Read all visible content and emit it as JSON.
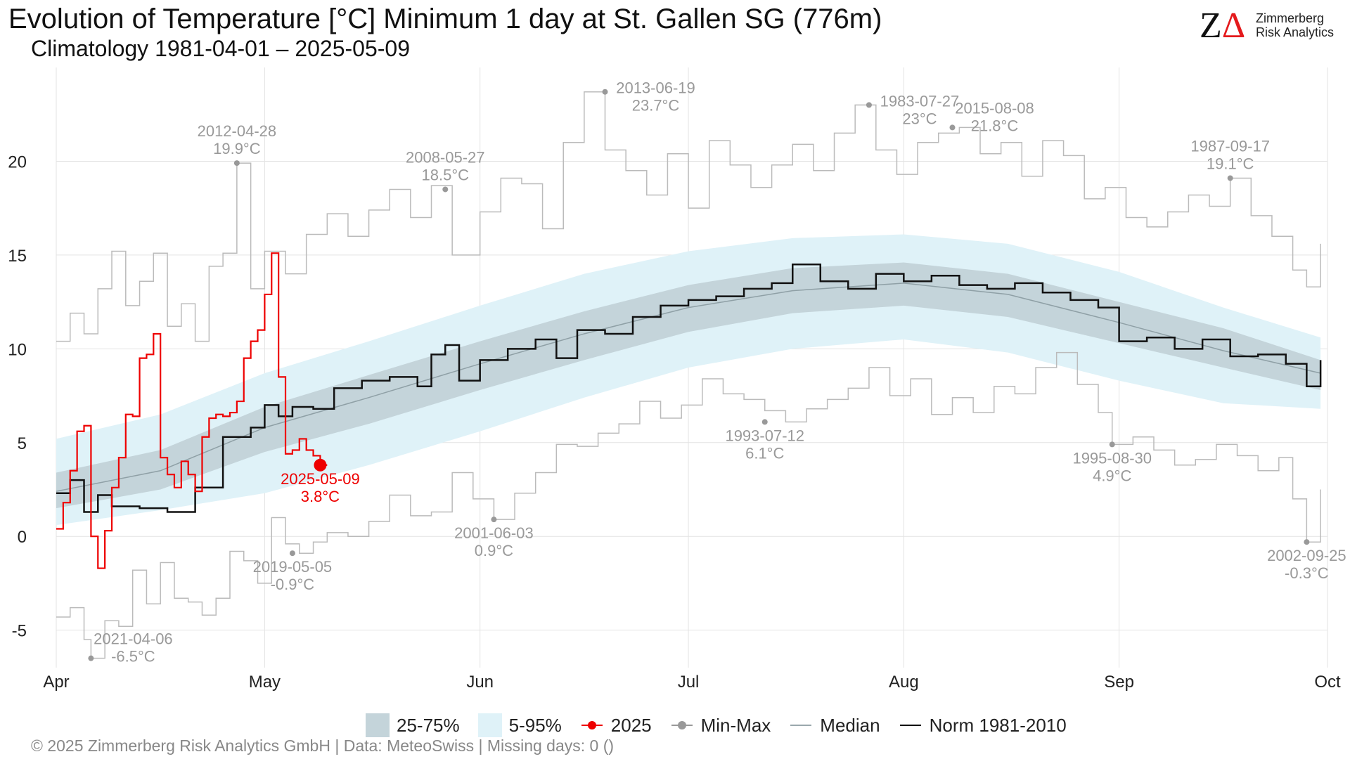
{
  "header": {
    "title": "Evolution of Temperature [°C] Minimum 1 day at St. Gallen  SG (776m)",
    "subtitle": "Climatology 1981-04-01 – 2025-05-09"
  },
  "logo": {
    "mark": "Z",
    "delta": "Δ",
    "line1": "Zimmerberg",
    "line2": "Risk Analytics"
  },
  "footer": "©  2025 Zimmerberg Risk Analytics GmbH | Data: MeteoSwiss | Missing days: 0 ()",
  "legend": [
    {
      "label": "25-75%",
      "key": "iqr"
    },
    {
      "label": "5-95%",
      "key": "p95"
    },
    {
      "label": "2025",
      "key": "dot",
      "color": "#ee0000"
    },
    {
      "label": "Min-Max",
      "key": "dot",
      "color": "#999999"
    },
    {
      "label": "Median",
      "key": "line",
      "color": "#9aa8ad"
    },
    {
      "label": "Norm 1981-2010",
      "key": "line",
      "color": "#111111"
    }
  ],
  "colors": {
    "band_iqr": "#c4d4da",
    "band_p95": "#dff2f8",
    "series_2025": "#ee0000",
    "minmax": "#bbbbbb",
    "norm": "#111111",
    "median": "#8fa0a6"
  },
  "chart_data": {
    "type": "line",
    "ylim": [
      -7,
      25
    ],
    "yticks": [
      -5,
      0,
      5,
      10,
      15,
      20
    ],
    "xlim": [
      0,
      183
    ],
    "xticks": [
      {
        "day": 0,
        "label": "Apr"
      },
      {
        "day": 30,
        "label": "May"
      },
      {
        "day": 61,
        "label": "Jun"
      },
      {
        "day": 91,
        "label": "Jul"
      },
      {
        "day": 122,
        "label": "Aug"
      },
      {
        "day": 153,
        "label": "Sep"
      },
      {
        "day": 183,
        "label": "Oct"
      }
    ],
    "grid": true,
    "legend_position": "bottom",
    "x_note": "day offset from 1 April",
    "percentiles": [
      {
        "day": 0,
        "p05": 0.6,
        "p25": 1.5,
        "p50": 2.4,
        "p75": 3.4,
        "p95": 5.2
      },
      {
        "day": 15,
        "p05": 1.4,
        "p25": 2.5,
        "p50": 3.5,
        "p75": 4.6,
        "p95": 6.5
      },
      {
        "day": 30,
        "p05": 2.3,
        "p25": 4.5,
        "p50": 5.8,
        "p75": 6.9,
        "p95": 8.7
      },
      {
        "day": 45,
        "p05": 3.8,
        "p25": 6.0,
        "p50": 7.4,
        "p75": 8.6,
        "p95": 10.4
      },
      {
        "day": 61,
        "p05": 5.6,
        "p25": 7.8,
        "p50": 9.2,
        "p75": 10.4,
        "p95": 12.3
      },
      {
        "day": 76,
        "p05": 7.4,
        "p25": 9.4,
        "p50": 10.8,
        "p75": 12.0,
        "p95": 14.0
      },
      {
        "day": 91,
        "p05": 9.0,
        "p25": 10.9,
        "p50": 12.2,
        "p75": 13.4,
        "p95": 15.2
      },
      {
        "day": 106,
        "p05": 10.0,
        "p25": 11.9,
        "p50": 13.1,
        "p75": 14.3,
        "p95": 15.9
      },
      {
        "day": 122,
        "p05": 10.5,
        "p25": 12.3,
        "p50": 13.5,
        "p75": 14.6,
        "p95": 16.1
      },
      {
        "day": 137,
        "p05": 9.8,
        "p25": 11.7,
        "p50": 12.9,
        "p75": 14.0,
        "p95": 15.6
      },
      {
        "day": 153,
        "p05": 8.3,
        "p25": 10.3,
        "p50": 11.4,
        "p75": 12.5,
        "p95": 14.1
      },
      {
        "day": 168,
        "p05": 7.1,
        "p25": 9.0,
        "p50": 9.9,
        "p75": 11.1,
        "p95": 12.2
      },
      {
        "day": 182,
        "p05": 6.8,
        "p25": 7.8,
        "p50": 8.7,
        "p75": 9.4,
        "p95": 10.6
      }
    ],
    "series_norm": [
      {
        "day": 0,
        "value": 2.3
      },
      {
        "day": 2,
        "value": 3.0
      },
      {
        "day": 4,
        "value": 1.3
      },
      {
        "day": 6,
        "value": 2.2
      },
      {
        "day": 8,
        "value": 1.6
      },
      {
        "day": 12,
        "value": 1.5
      },
      {
        "day": 16,
        "value": 1.3
      },
      {
        "day": 20,
        "value": 2.6
      },
      {
        "day": 24,
        "value": 5.3
      },
      {
        "day": 28,
        "value": 5.8
      },
      {
        "day": 30,
        "value": 7.0
      },
      {
        "day": 32,
        "value": 6.4
      },
      {
        "day": 34,
        "value": 6.9
      },
      {
        "day": 37,
        "value": 6.8
      },
      {
        "day": 40,
        "value": 7.9
      },
      {
        "day": 44,
        "value": 8.3
      },
      {
        "day": 48,
        "value": 8.5
      },
      {
        "day": 52,
        "value": 8.0
      },
      {
        "day": 54,
        "value": 9.7
      },
      {
        "day": 56,
        "value": 10.2
      },
      {
        "day": 58,
        "value": 8.3
      },
      {
        "day": 61,
        "value": 9.4
      },
      {
        "day": 65,
        "value": 10.0
      },
      {
        "day": 69,
        "value": 10.5
      },
      {
        "day": 72,
        "value": 9.5
      },
      {
        "day": 75,
        "value": 11.0
      },
      {
        "day": 79,
        "value": 10.8
      },
      {
        "day": 83,
        "value": 11.7
      },
      {
        "day": 87,
        "value": 12.3
      },
      {
        "day": 91,
        "value": 12.6
      },
      {
        "day": 95,
        "value": 12.8
      },
      {
        "day": 99,
        "value": 13.2
      },
      {
        "day": 103,
        "value": 13.5
      },
      {
        "day": 106,
        "value": 14.5
      },
      {
        "day": 110,
        "value": 13.6
      },
      {
        "day": 114,
        "value": 13.2
      },
      {
        "day": 118,
        "value": 14.0
      },
      {
        "day": 122,
        "value": 13.6
      },
      {
        "day": 126,
        "value": 13.9
      },
      {
        "day": 130,
        "value": 13.4
      },
      {
        "day": 134,
        "value": 13.2
      },
      {
        "day": 138,
        "value": 13.5
      },
      {
        "day": 142,
        "value": 13.0
      },
      {
        "day": 146,
        "value": 12.6
      },
      {
        "day": 150,
        "value": 12.2
      },
      {
        "day": 153,
        "value": 10.4
      },
      {
        "day": 157,
        "value": 10.6
      },
      {
        "day": 161,
        "value": 10.0
      },
      {
        "day": 165,
        "value": 10.5
      },
      {
        "day": 169,
        "value": 9.6
      },
      {
        "day": 173,
        "value": 9.7
      },
      {
        "day": 177,
        "value": 9.2
      },
      {
        "day": 180,
        "value": 8.0
      },
      {
        "day": 182,
        "value": 9.4
      }
    ],
    "series_2025": [
      {
        "day": 0,
        "value": 0.4
      },
      {
        "day": 1,
        "value": 1.8
      },
      {
        "day": 2,
        "value": 3.5
      },
      {
        "day": 3,
        "value": 5.6
      },
      {
        "day": 4,
        "value": 5.9
      },
      {
        "day": 5,
        "value": 0.0
      },
      {
        "day": 6,
        "value": -1.7
      },
      {
        "day": 7,
        "value": 0.3
      },
      {
        "day": 8,
        "value": 2.6
      },
      {
        "day": 9,
        "value": 4.2
      },
      {
        "day": 10,
        "value": 6.5
      },
      {
        "day": 11,
        "value": 6.4
      },
      {
        "day": 12,
        "value": 9.5
      },
      {
        "day": 13,
        "value": 9.7
      },
      {
        "day": 14,
        "value": 10.8
      },
      {
        "day": 15,
        "value": 4.2
      },
      {
        "day": 16,
        "value": 3.3
      },
      {
        "day": 17,
        "value": 2.6
      },
      {
        "day": 18,
        "value": 4.0
      },
      {
        "day": 19,
        "value": 3.3
      },
      {
        "day": 20,
        "value": 2.4
      },
      {
        "day": 21,
        "value": 5.3
      },
      {
        "day": 22,
        "value": 6.3
      },
      {
        "day": 23,
        "value": 6.5
      },
      {
        "day": 24,
        "value": 6.4
      },
      {
        "day": 25,
        "value": 6.6
      },
      {
        "day": 26,
        "value": 7.2
      },
      {
        "day": 27,
        "value": 9.5
      },
      {
        "day": 28,
        "value": 10.4
      },
      {
        "day": 29,
        "value": 11.0
      },
      {
        "day": 30,
        "value": 12.9
      },
      {
        "day": 31,
        "value": 15.1
      },
      {
        "day": 32,
        "value": 8.5
      },
      {
        "day": 33,
        "value": 4.4
      },
      {
        "day": 34,
        "value": 4.6
      },
      {
        "day": 35,
        "value": 5.2
      },
      {
        "day": 36,
        "value": 4.6
      },
      {
        "day": 37,
        "value": 4.3
      },
      {
        "day": 38,
        "value": 3.8
      }
    ],
    "series_max": [
      {
        "day": 0,
        "value": 10.4
      },
      {
        "day": 2,
        "value": 11.9
      },
      {
        "day": 4,
        "value": 10.8
      },
      {
        "day": 6,
        "value": 13.2
      },
      {
        "day": 8,
        "value": 15.2
      },
      {
        "day": 10,
        "value": 12.3
      },
      {
        "day": 12,
        "value": 13.6
      },
      {
        "day": 14,
        "value": 15.1
      },
      {
        "day": 16,
        "value": 11.2
      },
      {
        "day": 18,
        "value": 12.4
      },
      {
        "day": 20,
        "value": 10.4
      },
      {
        "day": 22,
        "value": 14.4
      },
      {
        "day": 24,
        "value": 15.1
      },
      {
        "day": 26,
        "value": 19.9
      },
      {
        "day": 28,
        "value": 13.2
      },
      {
        "day": 30,
        "value": 15.2
      },
      {
        "day": 33,
        "value": 14.0
      },
      {
        "day": 36,
        "value": 16.1
      },
      {
        "day": 39,
        "value": 17.2
      },
      {
        "day": 42,
        "value": 16.0
      },
      {
        "day": 45,
        "value": 17.4
      },
      {
        "day": 48,
        "value": 18.5
      },
      {
        "day": 51,
        "value": 17.0
      },
      {
        "day": 54,
        "value": 18.7
      },
      {
        "day": 57,
        "value": 15.0
      },
      {
        "day": 61,
        "value": 17.3
      },
      {
        "day": 64,
        "value": 19.1
      },
      {
        "day": 67,
        "value": 18.8
      },
      {
        "day": 70,
        "value": 16.4
      },
      {
        "day": 73,
        "value": 21.0
      },
      {
        "day": 76,
        "value": 23.7
      },
      {
        "day": 79,
        "value": 20.6
      },
      {
        "day": 82,
        "value": 19.5
      },
      {
        "day": 85,
        "value": 18.2
      },
      {
        "day": 88,
        "value": 20.4
      },
      {
        "day": 91,
        "value": 17.5
      },
      {
        "day": 94,
        "value": 21.1
      },
      {
        "day": 97,
        "value": 19.8
      },
      {
        "day": 100,
        "value": 18.6
      },
      {
        "day": 103,
        "value": 19.8
      },
      {
        "day": 106,
        "value": 20.9
      },
      {
        "day": 109,
        "value": 19.5
      },
      {
        "day": 112,
        "value": 21.5
      },
      {
        "day": 115,
        "value": 23.0
      },
      {
        "day": 118,
        "value": 20.6
      },
      {
        "day": 121,
        "value": 19.3
      },
      {
        "day": 124,
        "value": 21.0
      },
      {
        "day": 127,
        "value": 21.5
      },
      {
        "day": 130,
        "value": 21.8
      },
      {
        "day": 133,
        "value": 20.4
      },
      {
        "day": 136,
        "value": 21.0
      },
      {
        "day": 139,
        "value": 19.2
      },
      {
        "day": 142,
        "value": 21.1
      },
      {
        "day": 145,
        "value": 20.3
      },
      {
        "day": 148,
        "value": 18.0
      },
      {
        "day": 151,
        "value": 18.6
      },
      {
        "day": 154,
        "value": 17.0
      },
      {
        "day": 157,
        "value": 16.5
      },
      {
        "day": 160,
        "value": 17.3
      },
      {
        "day": 163,
        "value": 18.2
      },
      {
        "day": 166,
        "value": 17.6
      },
      {
        "day": 169,
        "value": 19.1
      },
      {
        "day": 172,
        "value": 17.1
      },
      {
        "day": 175,
        "value": 16.0
      },
      {
        "day": 178,
        "value": 14.2
      },
      {
        "day": 180,
        "value": 13.3
      },
      {
        "day": 182,
        "value": 15.6
      }
    ],
    "series_min": [
      {
        "day": 0,
        "value": -4.3
      },
      {
        "day": 2,
        "value": -3.8
      },
      {
        "day": 4,
        "value": -5.5
      },
      {
        "day": 5,
        "value": -6.5
      },
      {
        "day": 7,
        "value": -4.5
      },
      {
        "day": 9,
        "value": -4.8
      },
      {
        "day": 11,
        "value": -1.8
      },
      {
        "day": 13,
        "value": -3.6
      },
      {
        "day": 15,
        "value": -1.4
      },
      {
        "day": 17,
        "value": -3.3
      },
      {
        "day": 19,
        "value": -3.5
      },
      {
        "day": 21,
        "value": -4.2
      },
      {
        "day": 23,
        "value": -3.3
      },
      {
        "day": 25,
        "value": -0.8
      },
      {
        "day": 27,
        "value": -1.3
      },
      {
        "day": 29,
        "value": -2.5
      },
      {
        "day": 31,
        "value": 1.0
      },
      {
        "day": 33,
        "value": -0.4
      },
      {
        "day": 35,
        "value": -0.9
      },
      {
        "day": 37,
        "value": -0.3
      },
      {
        "day": 39,
        "value": 0.2
      },
      {
        "day": 42,
        "value": 0.0
      },
      {
        "day": 45,
        "value": 0.8
      },
      {
        "day": 48,
        "value": 2.2
      },
      {
        "day": 51,
        "value": 1.1
      },
      {
        "day": 54,
        "value": 1.3
      },
      {
        "day": 57,
        "value": 3.4
      },
      {
        "day": 60,
        "value": 2.0
      },
      {
        "day": 63,
        "value": 0.9
      },
      {
        "day": 66,
        "value": 2.3
      },
      {
        "day": 69,
        "value": 3.4
      },
      {
        "day": 72,
        "value": 4.9
      },
      {
        "day": 75,
        "value": 4.8
      },
      {
        "day": 78,
        "value": 5.5
      },
      {
        "day": 81,
        "value": 6.0
      },
      {
        "day": 84,
        "value": 7.2
      },
      {
        "day": 87,
        "value": 6.3
      },
      {
        "day": 90,
        "value": 7.0
      },
      {
        "day": 93,
        "value": 8.4
      },
      {
        "day": 96,
        "value": 7.6
      },
      {
        "day": 99,
        "value": 7.3
      },
      {
        "day": 102,
        "value": 6.7
      },
      {
        "day": 105,
        "value": 6.1
      },
      {
        "day": 108,
        "value": 6.8
      },
      {
        "day": 111,
        "value": 7.3
      },
      {
        "day": 114,
        "value": 7.9
      },
      {
        "day": 117,
        "value": 9.0
      },
      {
        "day": 120,
        "value": 7.5
      },
      {
        "day": 123,
        "value": 8.4
      },
      {
        "day": 126,
        "value": 6.5
      },
      {
        "day": 129,
        "value": 7.4
      },
      {
        "day": 132,
        "value": 6.6
      },
      {
        "day": 135,
        "value": 8.0
      },
      {
        "day": 138,
        "value": 7.6
      },
      {
        "day": 141,
        "value": 9.0
      },
      {
        "day": 144,
        "value": 9.8
      },
      {
        "day": 147,
        "value": 8.1
      },
      {
        "day": 150,
        "value": 6.6
      },
      {
        "day": 152,
        "value": 4.9
      },
      {
        "day": 155,
        "value": 5.3
      },
      {
        "day": 158,
        "value": 4.6
      },
      {
        "day": 161,
        "value": 3.8
      },
      {
        "day": 164,
        "value": 4.1
      },
      {
        "day": 167,
        "value": 4.9
      },
      {
        "day": 170,
        "value": 4.3
      },
      {
        "day": 173,
        "value": 3.5
      },
      {
        "day": 176,
        "value": 4.2
      },
      {
        "day": 178,
        "value": 2.0
      },
      {
        "day": 180,
        "value": -0.3
      },
      {
        "day": 182,
        "value": 2.5
      }
    ],
    "annotations": [
      {
        "day": 26,
        "value": 19.9,
        "date": "2012-04-28",
        "temp": "19.9°C",
        "pos": "above",
        "kind": "max"
      },
      {
        "day": 56,
        "value": 18.5,
        "date": "2008-05-27",
        "temp": "18.5°C",
        "pos": "above",
        "kind": "max"
      },
      {
        "day": 79,
        "value": 23.7,
        "date": "2013-06-19",
        "temp": "23.7°C",
        "pos": "right",
        "kind": "max"
      },
      {
        "day": 117,
        "value": 23.0,
        "date": "1983-07-27",
        "temp": "23°C",
        "pos": "right",
        "kind": "max"
      },
      {
        "day": 129,
        "value": 21.8,
        "date": "2015-08-08",
        "temp": "21.8°C",
        "pos": "upright",
        "kind": "max"
      },
      {
        "day": 169,
        "value": 19.1,
        "date": "1987-09-17",
        "temp": "19.1°C",
        "pos": "above",
        "kind": "max"
      },
      {
        "day": 5,
        "value": -6.5,
        "date": "2021-04-06",
        "temp": "-6.5°C",
        "pos": "upright",
        "kind": "min"
      },
      {
        "day": 34,
        "value": -0.9,
        "date": "2019-05-05",
        "temp": "-0.9°C",
        "pos": "below",
        "kind": "min"
      },
      {
        "day": 63,
        "value": 0.9,
        "date": "2001-06-03",
        "temp": "0.9°C",
        "pos": "below",
        "kind": "min"
      },
      {
        "day": 102,
        "value": 6.1,
        "date": "1993-07-12",
        "temp": "6.1°C",
        "pos": "below",
        "kind": "min"
      },
      {
        "day": 152,
        "value": 4.9,
        "date": "1995-08-30",
        "temp": "4.9°C",
        "pos": "below",
        "kind": "min"
      },
      {
        "day": 180,
        "value": -0.3,
        "date": "2002-09-25",
        "temp": "-0.3°C",
        "pos": "below",
        "kind": "min"
      },
      {
        "day": 38,
        "value": 3.8,
        "date": "2025-05-09",
        "temp": "3.8°C",
        "pos": "below",
        "kind": "current"
      }
    ]
  }
}
